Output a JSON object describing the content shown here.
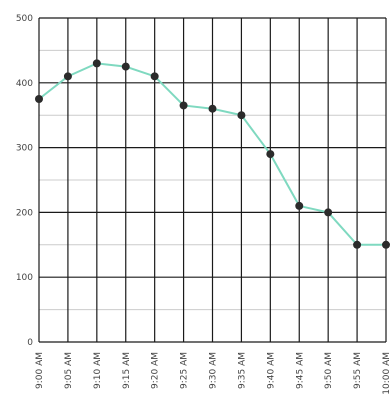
{
  "chart_data": {
    "type": "line",
    "title": "",
    "xlabel": "",
    "ylabel": "",
    "categories": [
      "9:00 AM",
      "9:05 AM",
      "9:10 AM",
      "9:15 AM",
      "9:20 AM",
      "9:25 AM",
      "9:30 AM",
      "9:35 AM",
      "9:40 AM",
      "9:45 AM",
      "9:50 AM",
      "9:55 AM",
      "10:00 AM"
    ],
    "series": [
      {
        "values": [
          375,
          410,
          430,
          425,
          410,
          365,
          360,
          350,
          290,
          210,
          200,
          150,
          150
        ]
      }
    ],
    "ylim": [
      0,
      500
    ],
    "yticks": [
      0,
      100,
      200,
      300,
      400,
      500
    ],
    "grid": true,
    "legend": "none",
    "colors": {
      "line": "#7fd9c0",
      "marker": "#2b2b2b",
      "grid_major": "#1a1a1a",
      "grid_minor": "#cccccc"
    }
  }
}
